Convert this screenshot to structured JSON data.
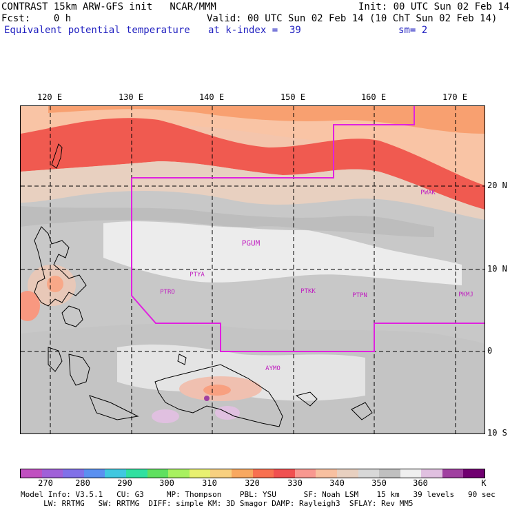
{
  "header": {
    "line1_left": "CONTRAST 15km ARW-GFS init   NCAR/MMM",
    "line1_right": "Init: 00 UTC Sun 02 Feb 14",
    "line2_left": "Fcst:    0 h",
    "line2_right": "Valid: 00 UTC Sun 02 Feb 14 (10 ChT Sun 02 Feb 14)",
    "line3_left": "Equivalent potential temperature",
    "line3_mid": "at k-index =  39",
    "line3_right": "sm= 2"
  },
  "axes": {
    "lon_labels": [
      "120 E",
      "130 E",
      "140 E",
      "150 E",
      "160 E",
      "170 E"
    ],
    "lat_labels": [
      "20 N",
      "10 N",
      "0",
      "10 S"
    ]
  },
  "stations": {
    "pwak": "PWAK",
    "pgum": "PGUM",
    "ptya": "PTYA",
    "ptro": "PTRO",
    "ptkk": "PTKK",
    "ptpn": "PTPN",
    "pkmj": "PKMJ",
    "aymo": "AYMO"
  },
  "colorbar": {
    "labels": [
      "270",
      "280",
      "290",
      "300",
      "310",
      "320",
      "330",
      "340",
      "350",
      "360",
      "K"
    ],
    "colors": [
      "#c050c0",
      "#a060d8",
      "#8070e8",
      "#5a90f0",
      "#40c8e0",
      "#30e0a0",
      "#60e060",
      "#a8f060",
      "#e8f070",
      "#f8d080",
      "#f8a860",
      "#f87050",
      "#f05050",
      "#f89890",
      "#f8c0a0",
      "#e8d0c0",
      "#d8d8d8",
      "#c0c0c0",
      "#f0f0f0",
      "#e0c0e0",
      "#a040a0",
      "#700070"
    ]
  },
  "footer": {
    "line1": "Model Info: V3.5.1   CU: G3     MP: Thompson    PBL: YSU      SF: Noah LSM    15 km   39 levels   90 sec",
    "line2": "     LW: RRTMG   SW: RRTMG  DIFF: simple KM: 3D Smagor DAMP: Rayleigh3  SFLAY: Rev MM5"
  },
  "chart_data": {
    "type": "heatmap",
    "title": "Equivalent potential temperature",
    "units": "K",
    "lon_range_deg": [
      116,
      173
    ],
    "lat_range_deg": [
      -10,
      29
    ],
    "contour_levels": [
      270,
      275,
      280,
      285,
      290,
      295,
      300,
      305,
      310,
      315,
      320,
      325,
      330,
      335,
      340,
      345,
      350,
      355,
      360,
      365,
      370,
      375
    ]
  }
}
